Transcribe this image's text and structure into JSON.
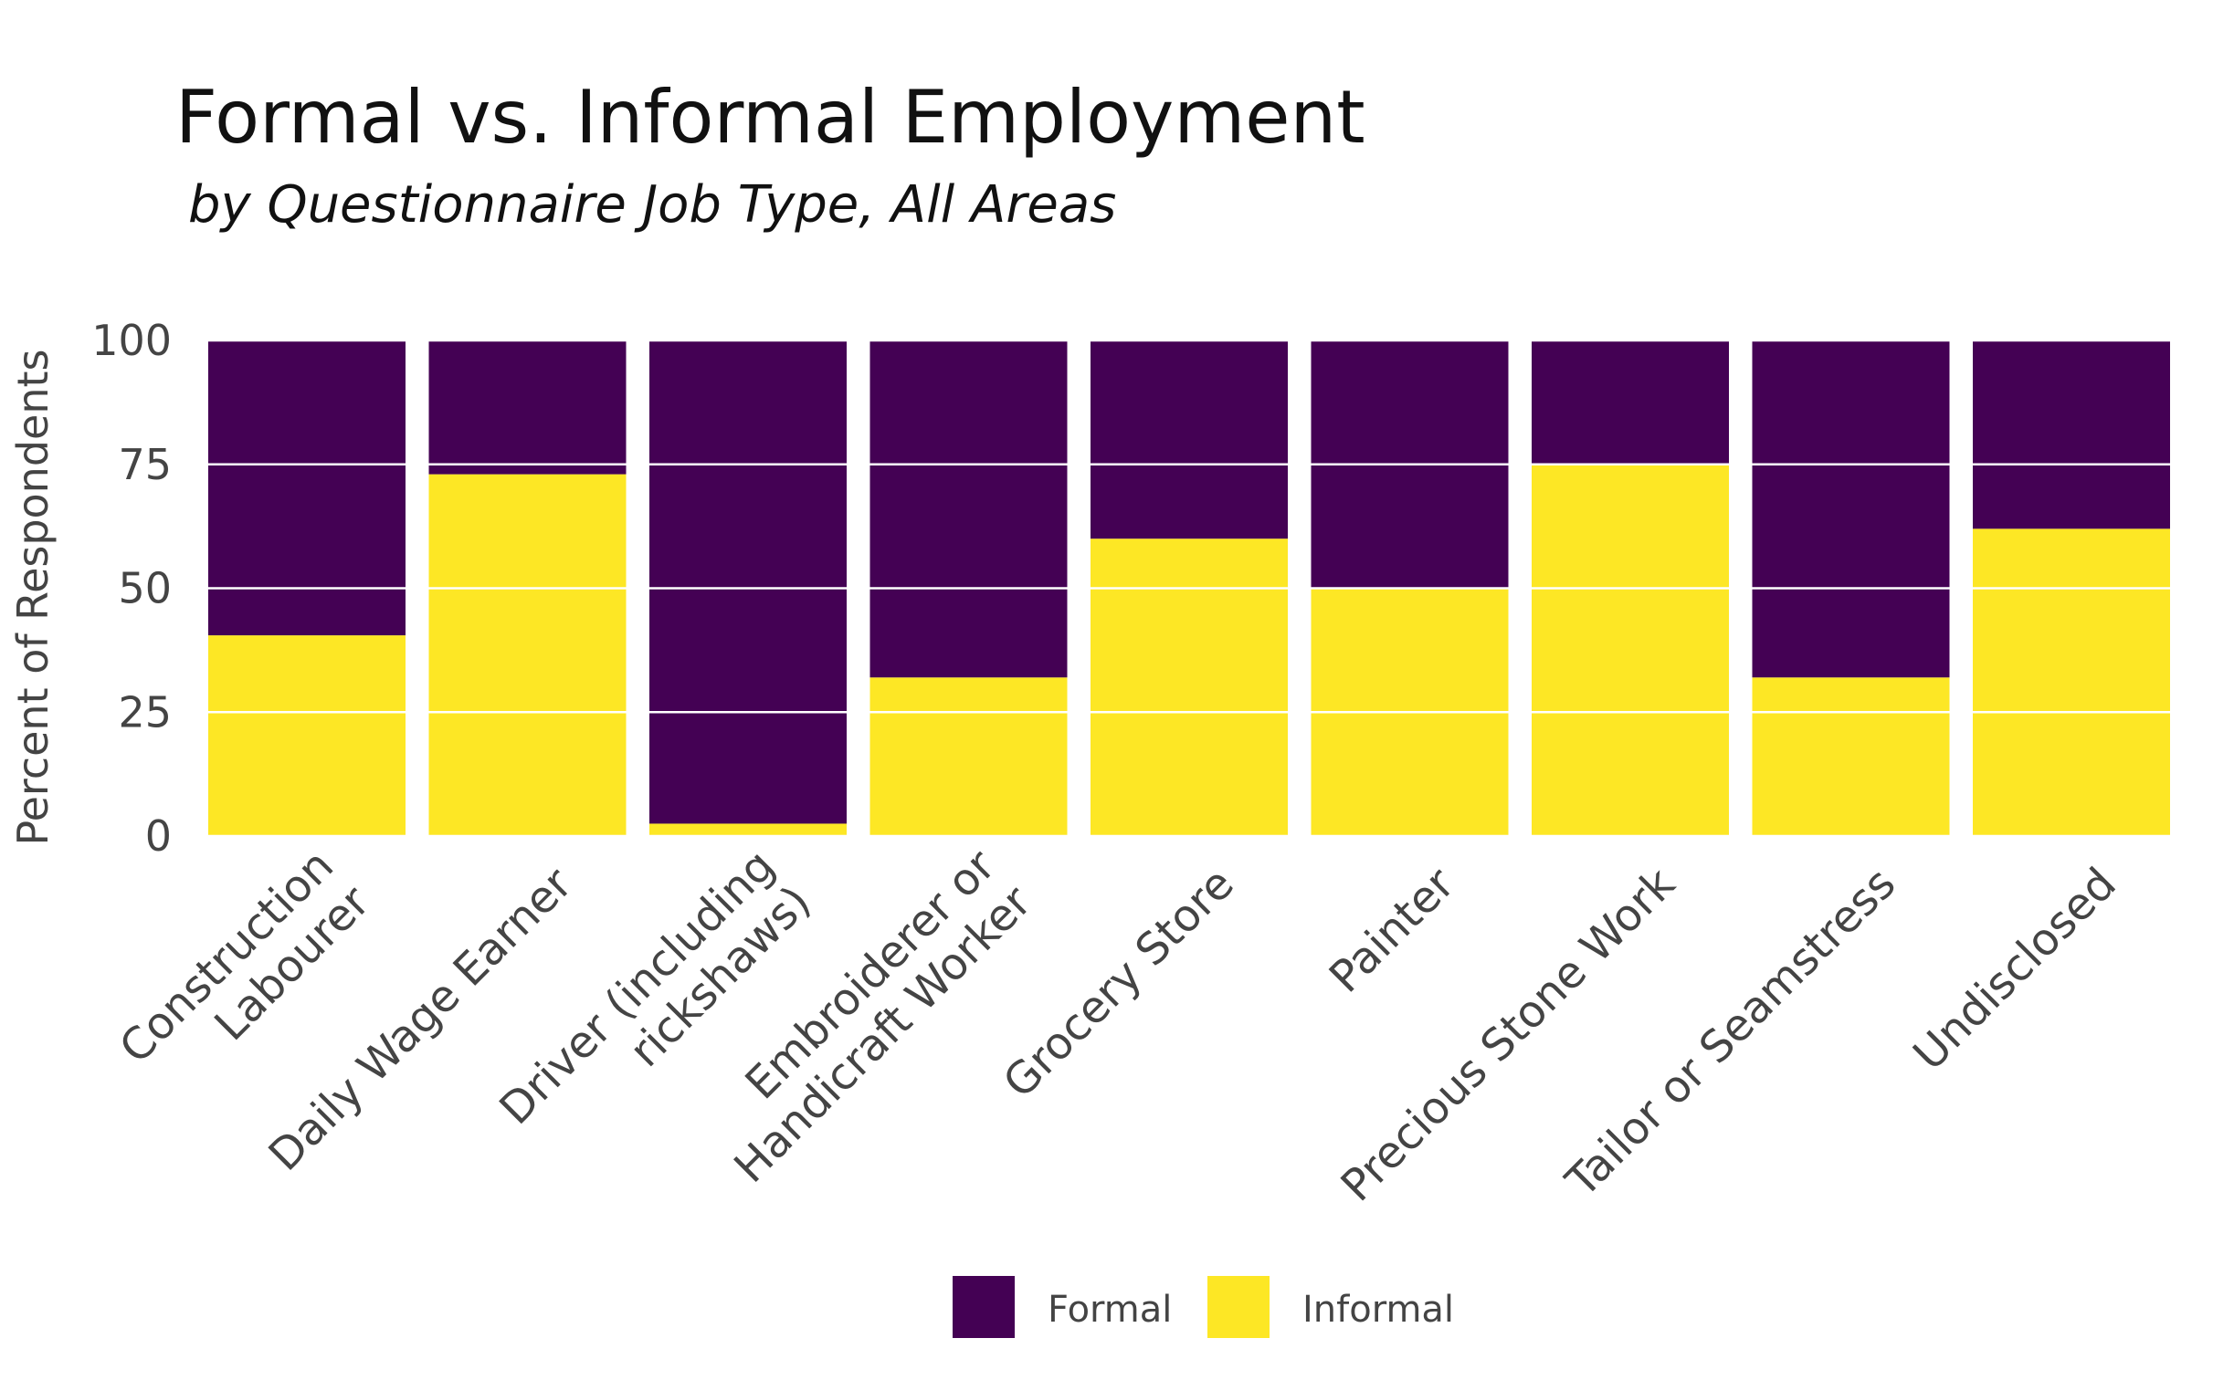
{
  "chart_data": {
    "type": "bar",
    "stacked": true,
    "title": "Formal vs. Informal Employment",
    "subtitle": "by Questionnaire Job Type, All Areas",
    "ylabel": "Percent of Respondents",
    "xlabel": "",
    "ylim": [
      0,
      100
    ],
    "yticks": [
      "0",
      "25",
      "50",
      "75",
      "100"
    ],
    "grid": true,
    "legend_position": "bottom",
    "categories": [
      [
        "Construction",
        "Labourer"
      ],
      [
        "Daily Wage Earner"
      ],
      [
        "Driver (including",
        "rickshaws)"
      ],
      [
        "Embroiderer or",
        "Handicraft Worker"
      ],
      [
        "Grocery Store"
      ],
      [
        "Painter"
      ],
      [
        "Precious Stone Work"
      ],
      [
        "Tailor or Seamstress"
      ],
      [
        "Undisclosed"
      ]
    ],
    "series": [
      {
        "name": "Informal",
        "color": "#fde725",
        "values": [
          40.5,
          73,
          2.5,
          32,
          60,
          50,
          75,
          32,
          62
        ]
      },
      {
        "name": "Formal",
        "color": "#440154",
        "values": [
          59.5,
          27,
          97.5,
          68,
          40,
          50,
          25,
          68,
          38
        ]
      }
    ],
    "legend": [
      {
        "name": "Formal",
        "color": "#440154"
      },
      {
        "name": "Informal",
        "color": "#fde725"
      }
    ]
  }
}
